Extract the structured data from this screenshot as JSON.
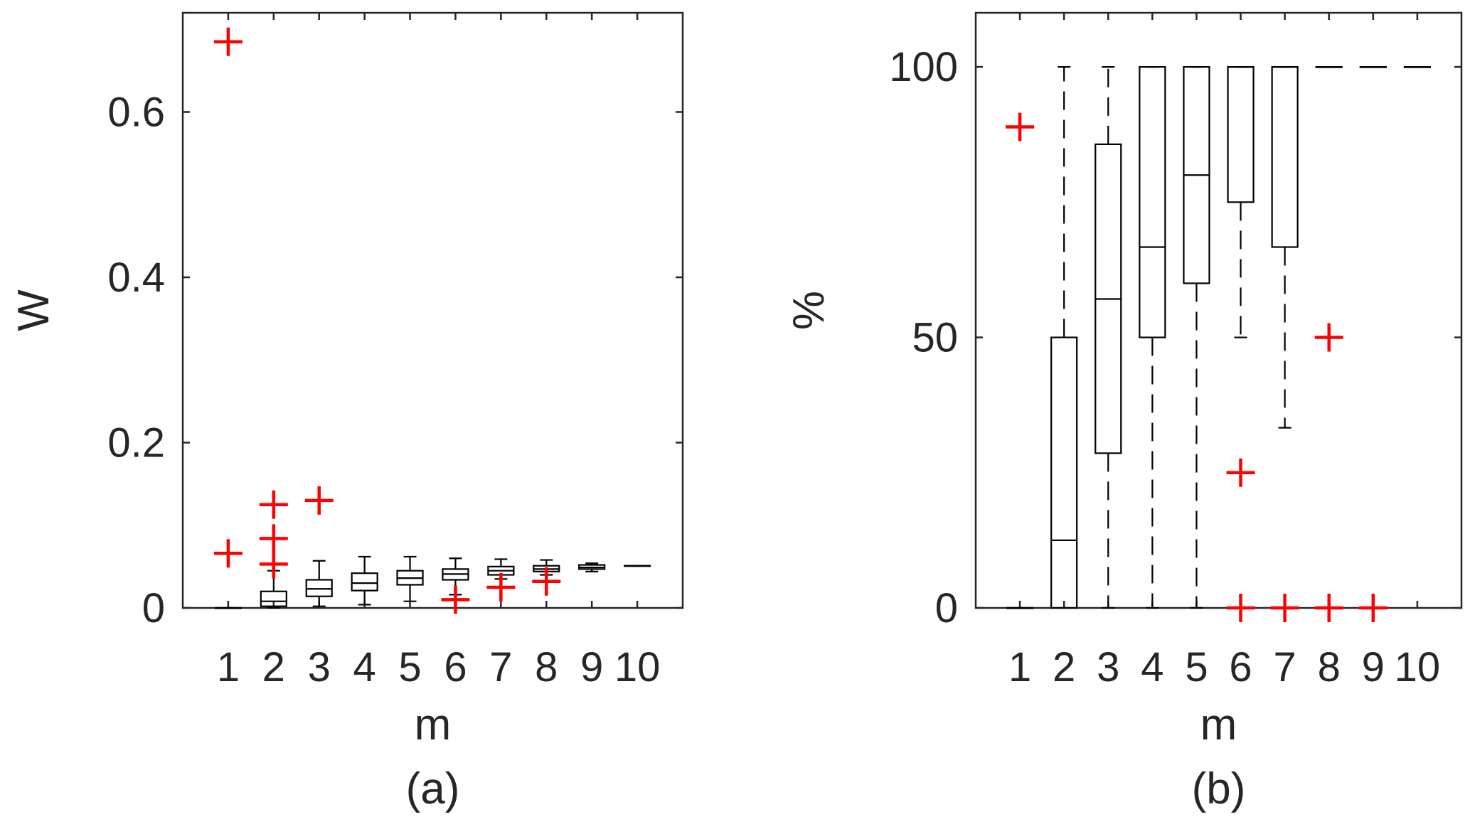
{
  "chart_data": [
    {
      "type": "box",
      "panel_caption": "(a)",
      "xlabel": "m",
      "ylabel": "W",
      "ylim": [
        0,
        0.72
      ],
      "yticks": [
        0,
        0.2,
        0.4,
        0.6
      ],
      "ytick_labels": [
        "0",
        "0.2",
        "0.4",
        "0.6"
      ],
      "categories": [
        "1",
        "2",
        "3",
        "4",
        "5",
        "6",
        "7",
        "8",
        "9",
        "10"
      ],
      "boxes": [
        {
          "q1": 0,
          "median": 0,
          "q3": 0,
          "wlo": 0,
          "whi": 0
        },
        {
          "q1": 0.002,
          "median": 0.008,
          "q3": 0.02,
          "wlo": 0,
          "whi": 0.045
        },
        {
          "q1": 0.014,
          "median": 0.023,
          "q3": 0.034,
          "wlo": 0.002,
          "whi": 0.057
        },
        {
          "q1": 0.021,
          "median": 0.03,
          "q3": 0.042,
          "wlo": 0.004,
          "whi": 0.062
        },
        {
          "q1": 0.028,
          "median": 0.036,
          "q3": 0.045,
          "wlo": 0.008,
          "whi": 0.062
        },
        {
          "q1": 0.034,
          "median": 0.041,
          "q3": 0.047,
          "wlo": 0.016,
          "whi": 0.06
        },
        {
          "q1": 0.04,
          "median": 0.045,
          "q3": 0.05,
          "wlo": 0.035,
          "whi": 0.059
        },
        {
          "q1": 0.044,
          "median": 0.047,
          "q3": 0.051,
          "wlo": 0.04,
          "whi": 0.058
        },
        {
          "q1": 0.047,
          "median": 0.049,
          "q3": 0.052,
          "wlo": 0.044,
          "whi": 0.054
        },
        {
          "q1": 0.051,
          "median": 0.051,
          "q3": 0.051,
          "wlo": 0.051,
          "whi": 0.051
        }
      ],
      "outliers": [
        {
          "x": "1",
          "y": 0.685
        },
        {
          "x": "1",
          "y": 0.066
        },
        {
          "x": "2",
          "y": 0.125
        },
        {
          "x": "2",
          "y": 0.084
        },
        {
          "x": "2",
          "y": 0.053
        },
        {
          "x": "3",
          "y": 0.13
        },
        {
          "x": "6",
          "y": 0.01
        },
        {
          "x": "7",
          "y": 0.025
        },
        {
          "x": "8",
          "y": 0.032
        }
      ],
      "colors": {
        "box": "#000000",
        "outlier": "#ff0000",
        "axis": "#262626"
      }
    },
    {
      "type": "box",
      "panel_caption": "(b)",
      "xlabel": "m",
      "ylabel": "%",
      "ylim": [
        0,
        110
      ],
      "yticks": [
        0,
        50,
        100
      ],
      "ytick_labels": [
        "0",
        "50",
        "100"
      ],
      "categories": [
        "1",
        "2",
        "3",
        "4",
        "5",
        "6",
        "7",
        "8",
        "9",
        "10"
      ],
      "boxes": [
        {
          "q1": 0,
          "median": 0,
          "q3": 0,
          "wlo": 0,
          "whi": 0
        },
        {
          "q1": 0,
          "median": 12.5,
          "q3": 50,
          "wlo": 0,
          "whi": 100
        },
        {
          "q1": 28.6,
          "median": 57.1,
          "q3": 85.7,
          "wlo": 0,
          "whi": 100
        },
        {
          "q1": 50,
          "median": 66.7,
          "q3": 100,
          "wlo": 0,
          "whi": 100
        },
        {
          "q1": 60,
          "median": 80,
          "q3": 100,
          "wlo": 0,
          "whi": 100
        },
        {
          "q1": 75,
          "median": 100,
          "q3": 100,
          "wlo": 50,
          "whi": 100
        },
        {
          "q1": 66.7,
          "median": 100,
          "q3": 100,
          "wlo": 33.3,
          "whi": 100
        },
        {
          "q1": 100,
          "median": 100,
          "q3": 100,
          "wlo": 100,
          "whi": 100
        },
        {
          "q1": 100,
          "median": 100,
          "q3": 100,
          "wlo": 100,
          "whi": 100
        },
        {
          "q1": 100,
          "median": 100,
          "q3": 100,
          "wlo": 100,
          "whi": 100
        }
      ],
      "outliers": [
        {
          "x": "1",
          "y": 88.9
        },
        {
          "x": "6",
          "y": 25
        },
        {
          "x": "6",
          "y": 0
        },
        {
          "x": "7",
          "y": 0
        },
        {
          "x": "8",
          "y": 50
        },
        {
          "x": "8",
          "y": 0
        },
        {
          "x": "9",
          "y": 0
        }
      ],
      "colors": {
        "box": "#000000",
        "outlier": "#ff0000",
        "axis": "#262626"
      }
    }
  ]
}
